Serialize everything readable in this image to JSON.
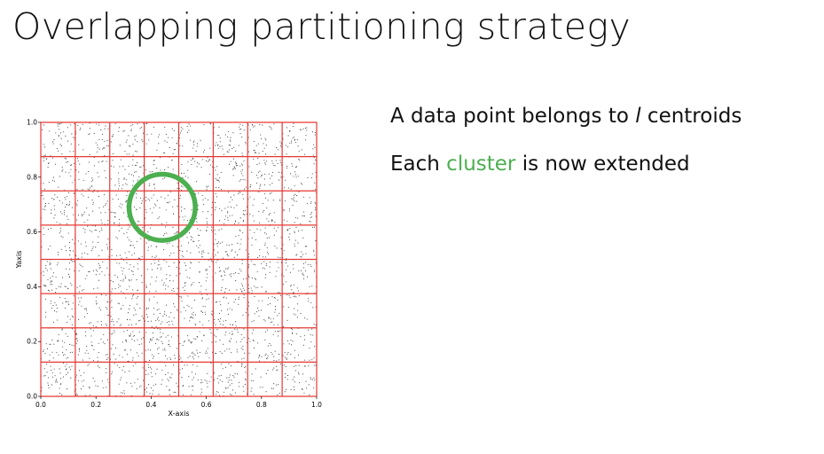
{
  "title": "Overlapping partitioning strategy",
  "bullets": {
    "line1": {
      "before": "A data point belongs to ",
      "italic": "l",
      "after": " centroids"
    },
    "line2": {
      "before": "Each ",
      "highlight": "cluster",
      "after": " is now extended"
    }
  },
  "colors": {
    "highlight": "#4caf50",
    "grid": "#e53935",
    "points": "#333333",
    "circle": "#4caf50"
  },
  "chart_data": {
    "type": "scatter",
    "xlabel": "X-axis",
    "ylabel": "Yaxis",
    "xlim": [
      0.0,
      1.0
    ],
    "ylim": [
      0.0,
      1.0
    ],
    "xticks": [
      "0.0",
      "0.2",
      "0.4",
      "0.6",
      "0.8",
      "1.0"
    ],
    "yticks": [
      "0.0",
      "0.2",
      "0.4",
      "0.6",
      "0.8",
      "1.0"
    ],
    "grid_lines": [
      0.0,
      0.125,
      0.25,
      0.375,
      0.5,
      0.625,
      0.75,
      0.875,
      1.0
    ],
    "highlight_circle": {
      "center": [
        0.44,
        0.69
      ],
      "radius": 0.12
    },
    "points_description": "uniform random points"
  }
}
